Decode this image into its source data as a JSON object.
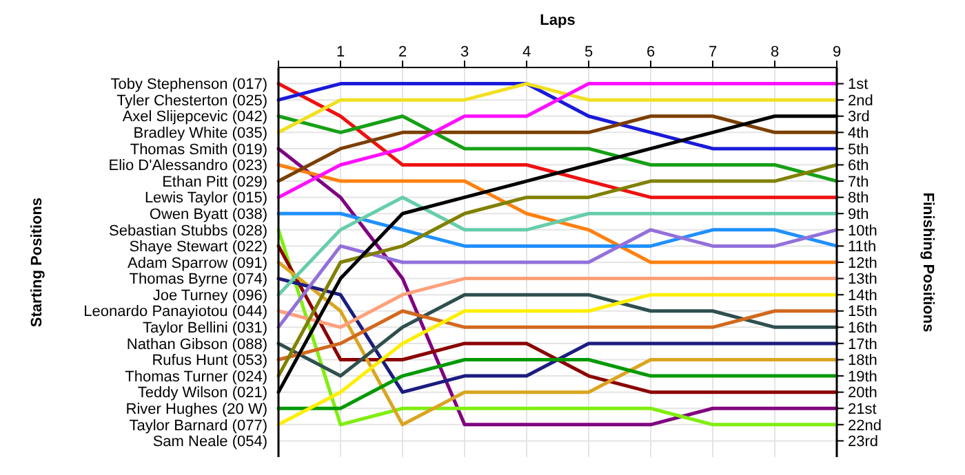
{
  "chart_data": {
    "type": "line",
    "xlabel": "Laps",
    "ylabel": "Finishing Positions",
    "x": [
      0,
      1,
      2,
      3,
      4,
      5,
      6,
      7,
      8,
      9
    ],
    "xlim": [
      0,
      9
    ],
    "xticks": [
      {
        "value": 0,
        "label": null
      },
      1,
      2,
      3,
      4,
      5,
      6,
      7,
      8,
      9
    ],
    "ylim": [
      24,
      0
    ],
    "yticks": [
      {
        "value": 1,
        "label": "1st"
      },
      {
        "value": 2,
        "label": "2nd"
      },
      {
        "value": 3,
        "label": "3rd"
      },
      {
        "value": 4,
        "label": "4th"
      },
      {
        "value": 5,
        "label": "5th"
      },
      {
        "value": 6,
        "label": "6th"
      },
      {
        "value": 7,
        "label": "7th"
      },
      {
        "value": 8,
        "label": "8th"
      },
      {
        "value": 9,
        "label": "9th"
      },
      {
        "value": 10,
        "label": "10th"
      },
      {
        "value": 11,
        "label": "11th"
      },
      {
        "value": 12,
        "label": "12th"
      },
      {
        "value": 13,
        "label": "13th"
      },
      {
        "value": 14,
        "label": "14th"
      },
      {
        "value": 15,
        "label": "15th"
      },
      {
        "value": 16,
        "label": "16th"
      },
      {
        "value": 17,
        "label": "17th"
      },
      {
        "value": 18,
        "label": "18th"
      },
      {
        "value": 19,
        "label": "19th"
      },
      {
        "value": 20,
        "label": "20th"
      },
      {
        "value": 21,
        "label": "21st"
      },
      {
        "value": 22,
        "label": "22nd"
      },
      {
        "value": 23,
        "label": "23rd"
      }
    ],
    "grid": true,
    "line_style": "solid",
    "annotations": [
      "Starting Positions",
      "Sam Neale (054)"
    ],
    "series": [
      {
        "name": "Toby Stephenson (017)",
        "color": "#ee1111",
        "values": [
          1,
          3,
          6,
          6,
          6,
          7,
          8,
          8,
          8,
          8
        ]
      },
      {
        "name": "Tyler Chesterton (025)",
        "color": "#1a1ad9",
        "values": [
          2,
          1,
          1,
          1,
          1,
          3,
          4,
          5,
          5,
          5
        ]
      },
      {
        "name": "Axel Slijepcevic (042)",
        "color": "#16a016",
        "values": [
          3,
          4,
          3,
          5,
          5,
          5,
          6,
          6,
          6,
          7
        ]
      },
      {
        "name": "Bradley White (035)",
        "color": "#f0e020",
        "values": [
          4,
          2,
          2,
          2,
          1,
          2,
          2,
          2,
          2,
          2
        ]
      },
      {
        "name": "Thomas Smith (019)",
        "color": "#800080",
        "values": [
          5,
          8,
          13,
          22,
          22,
          22,
          22,
          21,
          21,
          21
        ]
      },
      {
        "name": "Elio D'Alessandro (023)",
        "color": "#ff8010",
        "values": [
          6,
          7,
          7,
          7,
          9,
          10,
          12,
          12,
          12,
          12
        ]
      },
      {
        "name": "Ethan Pitt (029)",
        "color": "#7b3f00",
        "values": [
          7,
          5,
          4,
          4,
          4,
          4,
          3,
          3,
          4,
          4
        ]
      },
      {
        "name": "Lewis Taylor (015)",
        "color": "#ff10ff",
        "values": [
          8,
          6,
          5,
          3,
          3,
          1,
          1,
          1,
          1,
          1
        ]
      },
      {
        "name": "Owen Byatt (038)",
        "color": "#2090ff",
        "values": [
          9,
          9,
          10,
          11,
          11,
          11,
          11,
          10,
          10,
          11
        ]
      },
      {
        "name": "Sebastian Stubbs (028)",
        "color": "#80ee10",
        "values": [
          10,
          22,
          21,
          21,
          21,
          21,
          21,
          22,
          22,
          22
        ]
      },
      {
        "name": "Shaye Stewart (022)",
        "color": "#8b0000",
        "values": [
          11,
          18,
          18,
          17,
          17,
          19,
          20,
          20,
          20,
          20
        ]
      },
      {
        "name": "Adam Sparrow (091)",
        "color": "#daa520",
        "values": [
          12,
          15,
          22,
          20,
          20,
          20,
          18,
          18,
          18,
          18
        ]
      },
      {
        "name": "Thomas Byrne (074)",
        "color": "#1c1c80",
        "values": [
          13,
          14,
          20,
          19,
          19,
          17,
          17,
          17,
          17,
          17
        ]
      },
      {
        "name": "Joe Turney (096)",
        "color": "#66cdaa",
        "values": [
          14,
          10,
          8,
          10,
          10,
          9,
          9,
          9,
          9,
          9
        ]
      },
      {
        "name": "Leonardo Panayiotou (044)",
        "color": "#ffa07a",
        "values": [
          15,
          16,
          14,
          13,
          13,
          13,
          13,
          13,
          13,
          13
        ]
      },
      {
        "name": "Taylor Bellini (031)",
        "color": "#9370db",
        "values": [
          16,
          11,
          12,
          12,
          12,
          12,
          10,
          11,
          11,
          10
        ]
      },
      {
        "name": "Nathan Gibson (088)",
        "color": "#2f4f4f",
        "values": [
          17,
          19,
          16,
          14,
          14,
          14,
          15,
          15,
          16,
          16
        ]
      },
      {
        "name": "Rufus Hunt (053)",
        "color": "#d2691e",
        "values": [
          18,
          17,
          15,
          16,
          16,
          16,
          16,
          16,
          15,
          15
        ]
      },
      {
        "name": "Thomas Turner (024)",
        "color": "#808000",
        "values": [
          19,
          12,
          11,
          9,
          8,
          8,
          7,
          7,
          7,
          6
        ]
      },
      {
        "name": "Teddy Wilson (021)",
        "color": "#000000",
        "values": [
          20,
          13,
          9,
          8,
          7,
          6,
          5,
          4,
          3,
          3
        ]
      },
      {
        "name": "River Hughes (20 W)",
        "color": "#009900",
        "values": [
          21,
          21,
          19,
          18,
          18,
          18,
          19,
          19,
          19,
          19
        ]
      },
      {
        "name": "Taylor Barnard (077)",
        "color": "#ffee00",
        "values": [
          22,
          20,
          17,
          15,
          15,
          15,
          14,
          14,
          14,
          14
        ]
      }
    ]
  }
}
